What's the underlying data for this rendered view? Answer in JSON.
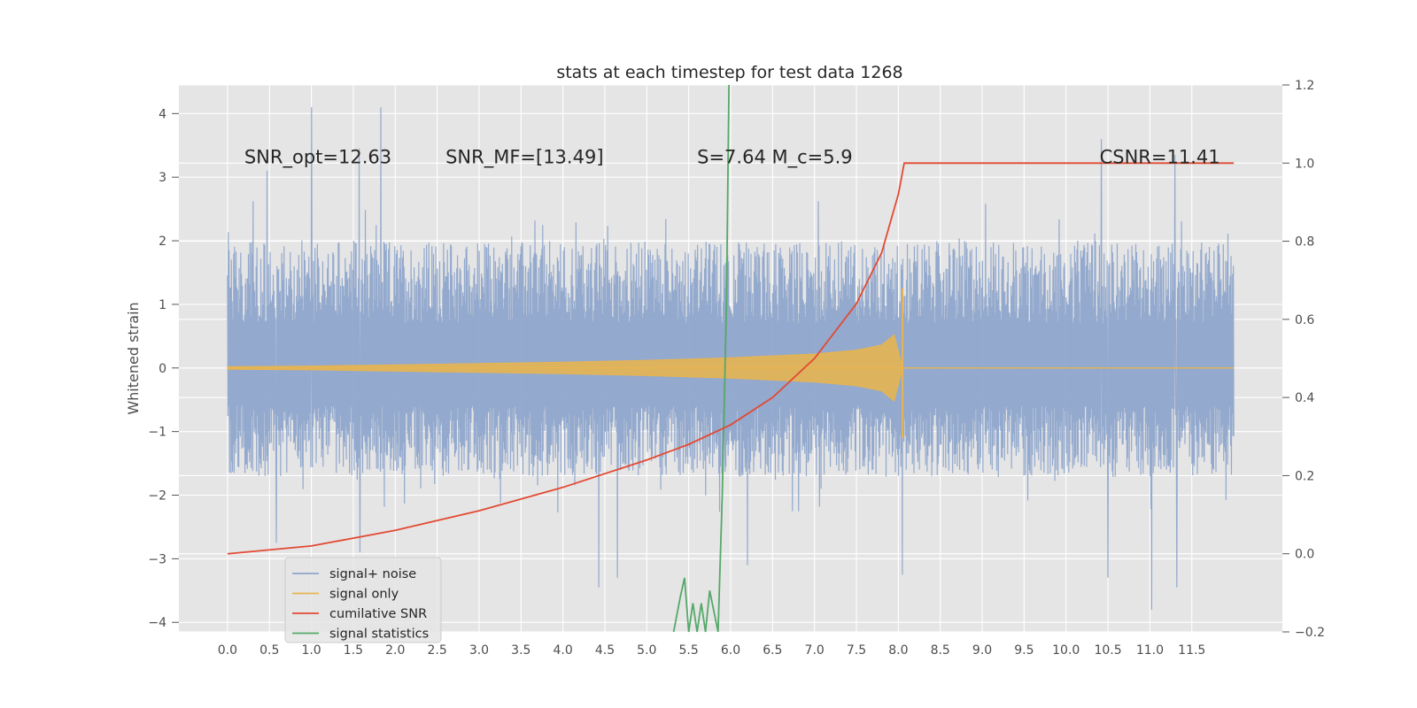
{
  "chart_data": {
    "type": "line",
    "title": "stats at each timestep for test data 1268",
    "xlabel": "",
    "ylabel": "Whitened strain",
    "y2label": "",
    "xlim": [
      -0.58,
      12.58
    ],
    "ylim": [
      -4.15,
      4.45
    ],
    "y2lim": [
      -0.2,
      1.2
    ],
    "xticks": [
      "0.0",
      "0.5",
      "1.0",
      "1.5",
      "2.0",
      "2.5",
      "3.0",
      "3.5",
      "4.0",
      "4.5",
      "5.0",
      "5.5",
      "6.0",
      "6.5",
      "7.0",
      "7.5",
      "8.0",
      "8.5",
      "9.0",
      "9.5",
      "10.0",
      "10.5",
      "11.0",
      "11.5"
    ],
    "yticks": [
      "4",
      "3",
      "2",
      "1",
      "0",
      "−1",
      "−2",
      "−3",
      "−4"
    ],
    "y2ticks": [
      "1.2",
      "1.0",
      "0.8",
      "0.6",
      "0.4",
      "0.2",
      "0.0",
      "−0.2"
    ],
    "grid": true,
    "background": "#e5e5e5",
    "legend_placement": "lower-left",
    "annotations": [
      {
        "text": "SNR_opt=12.63",
        "x": 0.2,
        "y": 3.33
      },
      {
        "text": "SNR_MF=[13.49]",
        "x": 2.6,
        "y": 3.33
      },
      {
        "text": "S=7.64   M_c=5.9",
        "x": 5.6,
        "y": 3.33
      },
      {
        "text": "CSNR=11.41",
        "x": 10.4,
        "y": 3.33
      }
    ],
    "series": [
      {
        "name": "signal+ noise",
        "axis": "left",
        "color": "#8ea5cb",
        "x_range": [
          0.0,
          12.0
        ],
        "typical_envelope": [
          -1.7,
          2.0
        ],
        "extreme_peaks": [
          {
            "x": 1.0,
            "y": 4.1
          },
          {
            "x": 1.83,
            "y": 4.1
          },
          {
            "x": 1.57,
            "y": 3.45
          },
          {
            "x": 0.47,
            "y": 3.1
          },
          {
            "x": 10.42,
            "y": 3.6
          },
          {
            "x": 11.3,
            "y": 3.35
          },
          {
            "x": 11.02,
            "y": -3.8
          },
          {
            "x": 11.32,
            "y": -3.45
          },
          {
            "x": 8.05,
            "y": -3.25
          },
          {
            "x": 4.43,
            "y": -3.45
          },
          {
            "x": 4.65,
            "y": -3.3
          },
          {
            "x": 0.58,
            "y": -2.75
          },
          {
            "x": 6.2,
            "y": -3.1
          },
          {
            "x": 10.5,
            "y": -3.3
          },
          {
            "x": 1.58,
            "y": -2.9
          }
        ]
      },
      {
        "name": "signal only",
        "axis": "left",
        "color": "#e7b451",
        "x": [
          0.0,
          1.0,
          2.0,
          3.0,
          4.0,
          5.0,
          6.0,
          7.0,
          7.5,
          7.8,
          7.95,
          8.05,
          12.0
        ],
        "amplitude": [
          0.02,
          0.03,
          0.05,
          0.07,
          0.09,
          0.12,
          0.16,
          0.22,
          0.28,
          0.36,
          0.52,
          0.0,
          0.0
        ],
        "merger_peak": {
          "x": 8.05,
          "y_max": 1.25,
          "y_min": -1.1
        }
      },
      {
        "name": "cumilative SNR",
        "axis": "right",
        "color": "#e24a33",
        "x": [
          0.0,
          1.0,
          2.0,
          3.0,
          4.0,
          5.0,
          5.5,
          6.0,
          6.5,
          7.0,
          7.5,
          7.8,
          8.0,
          8.07,
          12.0
        ],
        "values": [
          0.0,
          0.02,
          0.06,
          0.11,
          0.17,
          0.24,
          0.28,
          0.33,
          0.4,
          0.5,
          0.64,
          0.77,
          0.92,
          1.0,
          1.0
        ]
      },
      {
        "name": "signal statistics",
        "axis": "left",
        "color": "#55a868",
        "x": [
          5.32,
          5.4,
          5.45,
          5.5,
          5.55,
          5.6,
          5.65,
          5.7,
          5.75,
          5.85,
          5.9,
          5.95,
          5.98
        ],
        "values": [
          -4.15,
          -3.6,
          -3.3,
          -4.15,
          -3.7,
          -4.15,
          -3.7,
          -4.15,
          -3.5,
          -4.15,
          -2.0,
          1.0,
          4.45
        ]
      }
    ]
  }
}
